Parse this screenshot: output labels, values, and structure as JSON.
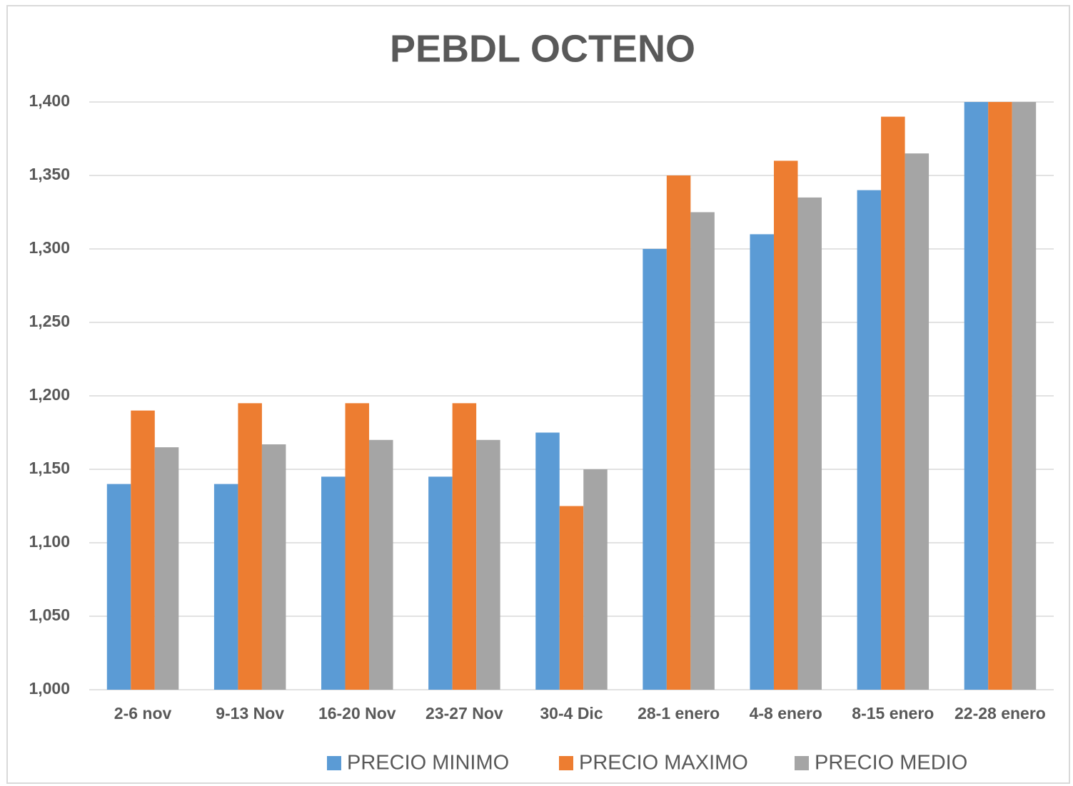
{
  "chart_data": {
    "type": "bar",
    "title": "PEBDL  OCTENO",
    "categories": [
      "2-6 nov",
      "9-13 Nov",
      "16-20 Nov",
      "23-27 Nov",
      "30-4 Dic",
      "28-1 enero",
      "4-8 enero",
      "8-15 enero",
      "22-28 enero"
    ],
    "series": [
      {
        "name": "PRECIO MINIMO",
        "color": "#5b9bd5",
        "values": [
          1140,
          1140,
          1145,
          1145,
          1175,
          1300,
          1310,
          1340,
          1400
        ]
      },
      {
        "name": "PRECIO MAXIMO",
        "color": "#ed7d31",
        "values": [
          1190,
          1195,
          1195,
          1195,
          1125,
          1350,
          1360,
          1390,
          1400
        ]
      },
      {
        "name": "PRECIO MEDIO",
        "color": "#a5a5a5",
        "values": [
          1165,
          1167,
          1170,
          1170,
          1150,
          1325,
          1335,
          1365,
          1400
        ]
      }
    ],
    "ylim": [
      1000,
      1400
    ],
    "yticks": [
      {
        "value": 1000,
        "label": "1,000"
      },
      {
        "value": 1050,
        "label": "1,050"
      },
      {
        "value": 1100,
        "label": "1,100"
      },
      {
        "value": 1150,
        "label": "1,150"
      },
      {
        "value": 1200,
        "label": "1,200"
      },
      {
        "value": 1250,
        "label": "1,250"
      },
      {
        "value": 1300,
        "label": "1,300"
      },
      {
        "value": 1350,
        "label": "1,350"
      },
      {
        "value": 1400,
        "label": "1,400"
      }
    ],
    "grid": true,
    "legend": "bottom"
  }
}
